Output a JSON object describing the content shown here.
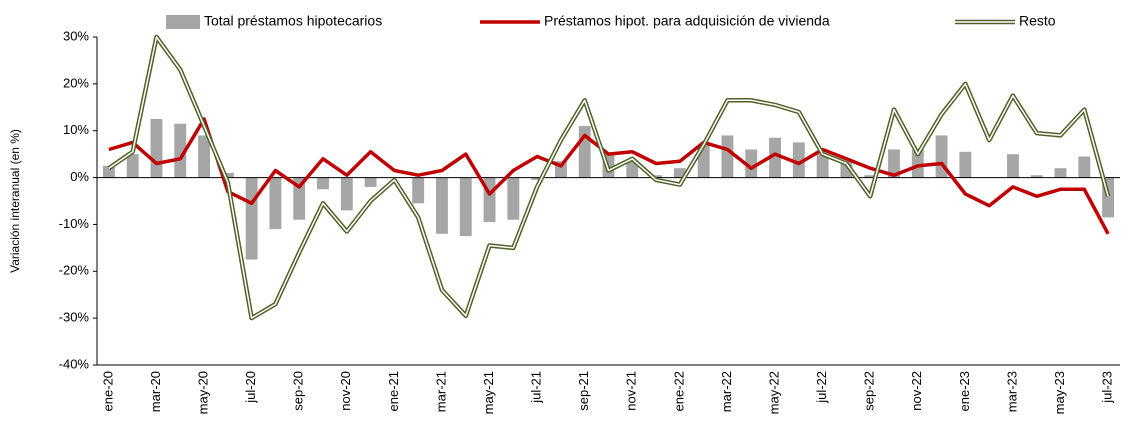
{
  "chart_data": {
    "type": "combo",
    "y_label": "Variación interanual (en %)",
    "categories": [
      "ene-20",
      null,
      "mar-20",
      null,
      "may-20",
      null,
      "jul-20",
      null,
      "sep-20",
      null,
      "nov-20",
      null,
      "ene-21",
      null,
      "mar-21",
      null,
      "may-21",
      null,
      "jul-21",
      null,
      "sep-21",
      null,
      "nov-21",
      null,
      "ene-22",
      null,
      "mar-22",
      null,
      "may-22",
      null,
      "jul-22",
      null,
      "sep-22",
      null,
      "nov-22",
      null,
      "ene-23",
      null,
      "mar-23",
      null,
      "may-23",
      null,
      "jul-23"
    ],
    "series": [
      {
        "name": "Total préstamos hipotecarios",
        "type": "bar",
        "color": "#a6a6a6",
        "values": [
          2.5,
          5,
          12.5,
          11.5,
          9,
          1,
          -17.5,
          -11,
          -9,
          -2.5,
          -7,
          -2,
          0,
          -5.5,
          -12,
          -12.5,
          -9.5,
          -9,
          -0.5,
          3.5,
          11,
          5,
          3.5,
          0.5,
          2,
          7,
          9,
          6,
          8.5,
          7.5,
          5,
          3.5,
          0.5,
          6,
          6,
          9,
          5.5,
          0,
          5,
          0.5,
          2,
          4.5,
          -8.5
        ]
      },
      {
        "name": "Préstamos hipot. para adquisición de vivienda",
        "type": "line",
        "color": "#c00000",
        "values": [
          6,
          7.5,
          3,
          4,
          12.5,
          -3,
          -5.5,
          1.5,
          -2,
          4,
          0.5,
          5.5,
          1.5,
          0.5,
          1.5,
          5,
          -3.5,
          1.5,
          4.5,
          2.5,
          9,
          5,
          5.5,
          3,
          3.5,
          7.5,
          6,
          2,
          5,
          3,
          6,
          4,
          2,
          0.5,
          2.5,
          3,
          -3.5,
          -6,
          -2,
          -4,
          -2.5,
          -2.5,
          -12
        ]
      },
      {
        "name": "Resto",
        "type": "line",
        "line_style": "double",
        "color": "#4f6228",
        "values": [
          2,
          5.5,
          30,
          23,
          11,
          -1,
          -30,
          -27,
          -16,
          -5.5,
          -11.5,
          -5,
          -0.5,
          -8.5,
          -24,
          -29.5,
          -14.5,
          -15,
          -2,
          8,
          16.5,
          1.5,
          4,
          -0.5,
          -1.5,
          7,
          16.5,
          16.5,
          15.5,
          14,
          5,
          3,
          -4,
          14.5,
          5,
          13.5,
          20,
          8,
          17.5,
          9.5,
          9,
          14.5,
          -4
        ]
      }
    ],
    "ylim": [
      -40,
      30
    ],
    "yticks": [
      {
        "value": -40,
        "label": "-40%"
      },
      {
        "value": -30,
        "label": "-30%"
      },
      {
        "value": -20,
        "label": "-20%"
      },
      {
        "value": -10,
        "label": "-10%"
      },
      {
        "value": 0,
        "label": "0%"
      },
      {
        "value": 10,
        "label": "10%"
      },
      {
        "value": 20,
        "label": "20%"
      },
      {
        "value": 30,
        "label": "30%"
      }
    ],
    "legend": "top"
  }
}
